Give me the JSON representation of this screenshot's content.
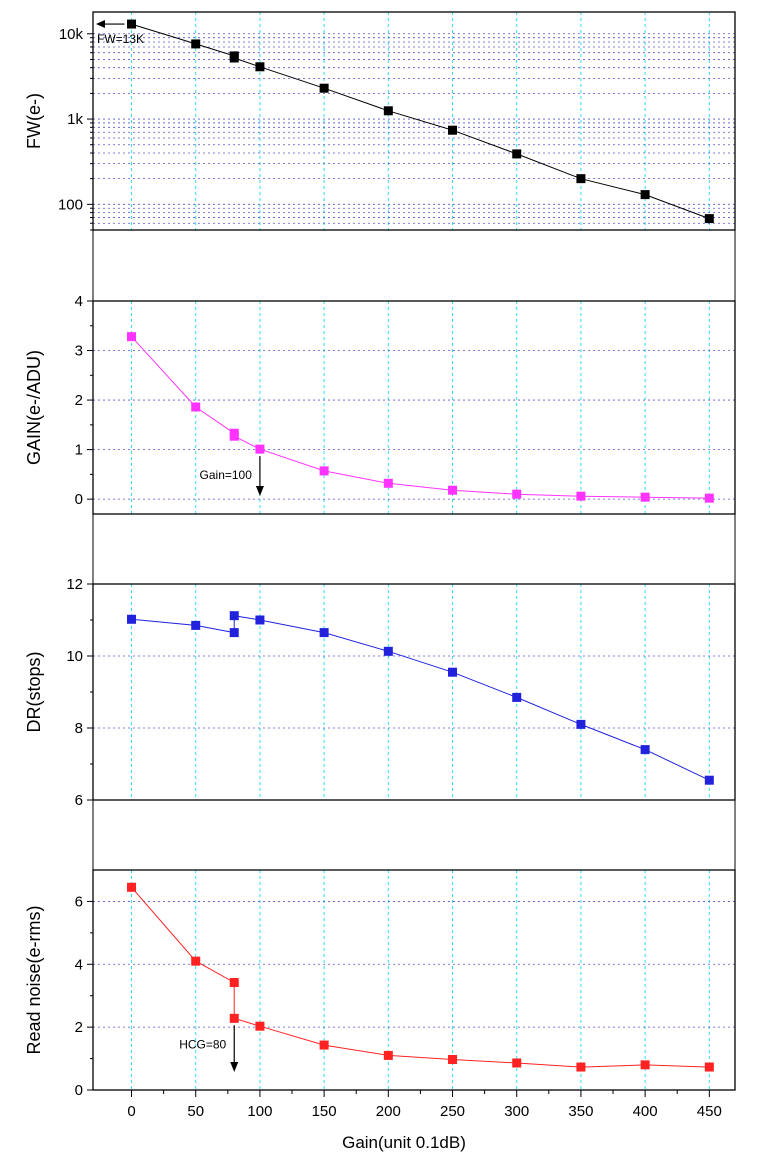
{
  "chart_data": {
    "type": "line",
    "xlabel": "Gain(unit 0.1dB)",
    "xlim": [
      -30,
      470
    ],
    "x_ticks": [
      0,
      50,
      100,
      150,
      200,
      250,
      300,
      350,
      400,
      450
    ],
    "panels": [
      {
        "id": "fw",
        "ylabel": "FW(e-)",
        "scale": "log",
        "ylim": [
          50,
          18000
        ],
        "y_ticks": [
          100,
          1000,
          10000
        ],
        "y_tick_labels": [
          "100",
          "1k",
          "10k"
        ],
        "grid": true,
        "color": "#000000",
        "series": [
          {
            "x": [
              0,
              50,
              80,
              80,
              100,
              150,
              200,
              250,
              300,
              350,
              400,
              450
            ],
            "y": [
              13000,
              7600,
              5500,
              5200,
              4100,
              2300,
              1250,
              740,
              390,
              200,
              130,
              68
            ]
          }
        ],
        "annotation": {
          "text": "FW=13K",
          "arrow": "left",
          "at_x": 0,
          "at_y": 13000
        }
      },
      {
        "id": "gain",
        "ylabel": "GAIN(e-/ADU)",
        "scale": "linear",
        "ylim": [
          -0.3,
          4
        ],
        "y_ticks": [
          0,
          1,
          2,
          3,
          4
        ],
        "y_tick_labels": [
          "0",
          "1",
          "2",
          "3",
          "4"
        ],
        "grid": true,
        "color": "#ff33ff",
        "series": [
          {
            "x": [
              0,
              50,
              80,
              80,
              100,
              150,
              200,
              250,
              300,
              350,
              400,
              450
            ],
            "y": [
              3.28,
              1.86,
              1.33,
              1.27,
              1.01,
              0.57,
              0.32,
              0.18,
              0.1,
              0.06,
              0.04,
              0.02
            ]
          }
        ],
        "annotation": {
          "text": "Gain=100",
          "arrow": "down",
          "at_x": 100,
          "at_y": 1.01
        }
      },
      {
        "id": "dr",
        "ylabel": "DR(stops)",
        "scale": "linear",
        "ylim": [
          6,
          12
        ],
        "y_ticks": [
          6,
          8,
          10,
          12
        ],
        "y_tick_labels": [
          "6",
          "8",
          "10",
          "12"
        ],
        "grid": true,
        "color": "#2222dd",
        "series": [
          {
            "x": [
              0,
              50,
              80,
              80,
              100,
              150,
              200,
              250,
              300,
              350,
              400,
              450
            ],
            "y": [
              11.02,
              10.85,
              10.65,
              11.12,
              11.0,
              10.65,
              10.13,
              9.55,
              8.85,
              8.1,
              7.4,
              6.55
            ]
          }
        ]
      },
      {
        "id": "rn",
        "ylabel": "Read noise(e-rms)",
        "scale": "linear",
        "ylim": [
          0,
          7
        ],
        "y_ticks": [
          0,
          2,
          4,
          6
        ],
        "y_tick_labels": [
          "0",
          "2",
          "4",
          "6"
        ],
        "grid": true,
        "color": "#ff2222",
        "series": [
          {
            "x": [
              0,
              50,
              80,
              80,
              100,
              150,
              200,
              250,
              300,
              350,
              400,
              450
            ],
            "y": [
              6.45,
              4.1,
              3.42,
              2.28,
              2.03,
              1.43,
              1.1,
              0.97,
              0.86,
              0.73,
              0.8,
              0.73
            ]
          }
        ],
        "annotation": {
          "text": "HCG=80",
          "arrow": "down",
          "at_x": 80,
          "at_y": 2.28
        }
      }
    ]
  }
}
